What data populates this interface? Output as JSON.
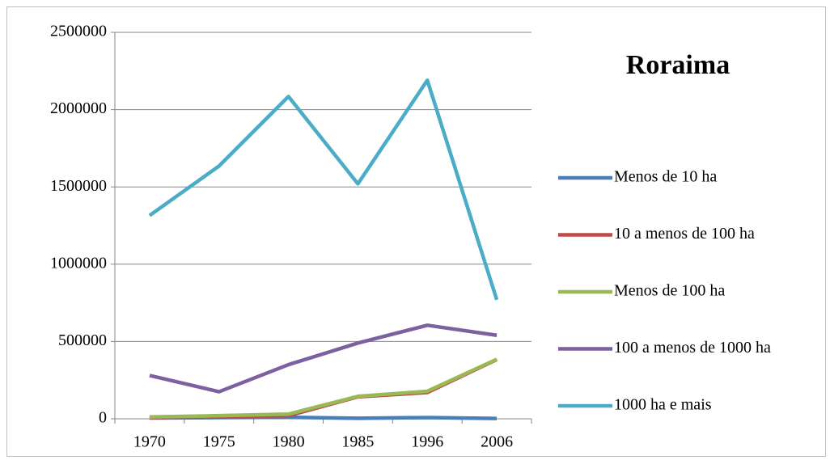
{
  "chart_data": {
    "type": "line",
    "title": "Roraima",
    "categories": [
      "1970",
      "1975",
      "1980",
      "1985",
      "1996",
      "2006"
    ],
    "series": [
      {
        "name": "Menos de 10 ha",
        "color": "#4a7ebb",
        "values": [
          5000,
          8000,
          10000,
          3000,
          8000,
          2000
        ]
      },
      {
        "name": "10 a menos de 100 ha",
        "color": "#be4b48",
        "values": [
          7000,
          12000,
          20000,
          142000,
          170000,
          383000
        ]
      },
      {
        "name": "Menos de 100 ha",
        "color": "#98b954",
        "values": [
          12000,
          20000,
          30000,
          145000,
          178000,
          385000
        ]
      },
      {
        "name": "100 a menos de 1000 ha",
        "color": "#7d60a0",
        "values": [
          280000,
          175000,
          350000,
          490000,
          605000,
          540000
        ]
      },
      {
        "name": "1000 ha e mais",
        "color": "#4bacc6",
        "values": [
          1315000,
          1635000,
          2085000,
          1520000,
          2190000,
          770000
        ]
      }
    ],
    "ylim": [
      0,
      2500000
    ],
    "yticks": [
      0,
      500000,
      1000000,
      1500000,
      2000000,
      2500000
    ],
    "grid": true,
    "legend": "right"
  }
}
